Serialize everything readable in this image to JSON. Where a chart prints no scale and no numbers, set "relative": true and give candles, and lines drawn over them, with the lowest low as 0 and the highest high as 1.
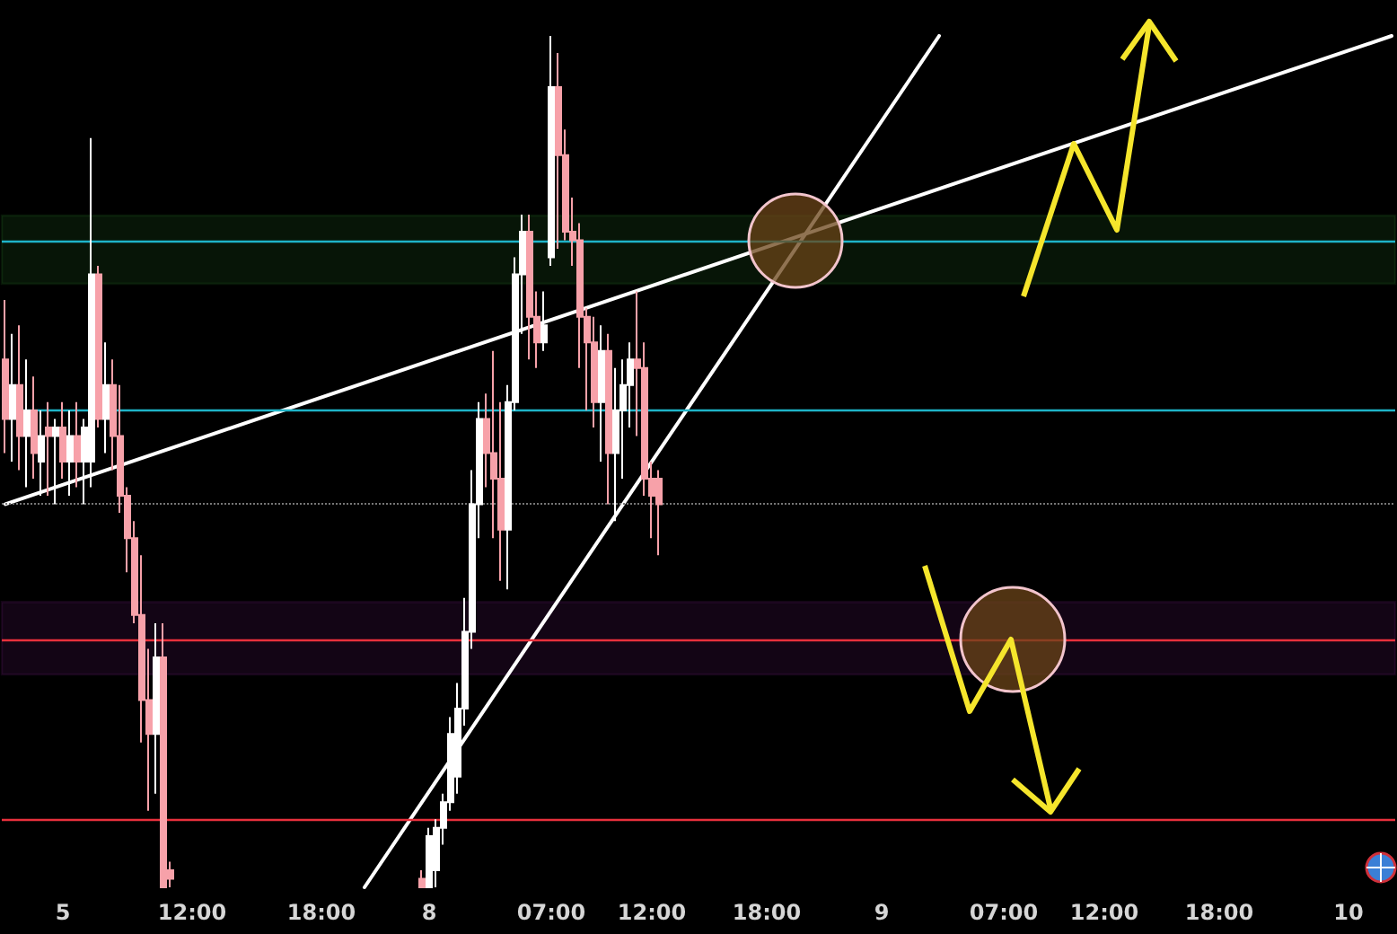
{
  "chart_data": {
    "type": "candlestick",
    "relative": true,
    "colors": [
      "#f7a1a9",
      "#ffffff",
      "#f7a1a9",
      "#ffffff",
      "#f7a1a9",
      "#ffffff",
      "#f7a1a9",
      "#ffffff",
      "#f7a1a9",
      "#ffffff",
      "#f7a1a9",
      "#ffffff",
      "#ffffff",
      "#f7a1a9",
      "#ffffff",
      "#f7a1a9",
      "#f7a1a9",
      "#f7a1a9",
      "#f7a1a9",
      "#f7a1a9",
      "#f7a1a9",
      "#ffffff",
      "#f7a1a9",
      "#f7a1a9",
      null,
      null,
      null,
      null,
      null,
      null,
      null,
      null,
      null,
      null,
      null,
      null,
      null,
      null,
      null,
      null,
      null,
      null,
      null,
      null,
      null,
      null,
      null,
      null,
      null,
      null,
      null,
      null,
      null,
      null,
      null,
      null,
      null,
      null,
      "#f7a1a9",
      "#ffffff",
      "#ffffff",
      "#ffffff",
      "#ffffff",
      "#ffffff",
      "#ffffff",
      "#ffffff",
      "#ffffff",
      "#f7a1a9",
      "#f7a1a9",
      "#f7a1a9",
      "#ffffff",
      "#ffffff",
      "#ffffff",
      "#f7a1a9",
      "#f7a1a9",
      "#ffffff",
      "#ffffff",
      "#f7a1a9",
      "#f7a1a9",
      "#f7a1a9",
      "#f7a1a9",
      "#f7a1a9",
      "#f7a1a9",
      "#ffffff",
      "#f7a1a9",
      "#ffffff",
      "#ffffff",
      "#ffffff",
      "#f7a1a9",
      "#f7a1a9",
      "#f7a1a9",
      "#f7a1a9",
      null,
      null,
      null,
      null,
      null,
      null,
      null,
      null,
      null,
      null,
      null,
      null,
      null,
      null,
      null,
      null,
      null,
      null,
      null,
      null,
      null,
      null,
      null,
      null,
      null,
      null,
      null,
      null,
      null,
      null,
      null,
      null,
      null,
      null,
      null,
      null,
      null,
      null,
      null,
      null,
      null,
      null,
      null,
      null,
      null,
      null,
      null,
      null,
      null,
      null,
      null,
      null,
      null,
      null,
      null,
      null,
      null,
      null,
      null,
      null,
      null,
      null,
      null,
      null,
      null,
      null,
      null,
      null,
      null,
      null,
      null,
      null,
      null,
      null,
      null,
      null,
      null,
      null,
      null,
      null,
      null,
      null,
      null,
      null,
      null,
      null,
      null,
      null,
      null,
      null,
      null,
      null,
      null,
      null,
      null,
      null,
      null,
      null,
      null,
      null,
      null,
      null
    ],
    "categories": [
      null,
      null,
      null,
      null,
      null,
      null,
      null,
      null,
      "5",
      null,
      null,
      null,
      null,
      null,
      null,
      null,
      null,
      null,
      null,
      null,
      null,
      null,
      null,
      null,
      null,
      null,
      "12:00",
      null,
      null,
      null,
      null,
      null,
      null,
      null,
      null,
      null,
      null,
      null,
      null,
      null,
      null,
      null,
      null,
      null,
      "18:00",
      null,
      null,
      null,
      null,
      null,
      null,
      null,
      null,
      null,
      null,
      null,
      null,
      null,
      null,
      "8",
      null,
      null,
      null,
      null,
      null,
      null,
      null,
      null,
      null,
      null,
      null,
      null,
      null,
      null,
      null,
      null,
      "07:00",
      null,
      null,
      null,
      null,
      null,
      null,
      null,
      null,
      null,
      null,
      null,
      null,
      null,
      "12:00",
      null,
      null,
      null,
      null,
      null,
      null,
      null,
      null,
      null,
      null,
      null,
      null,
      null,
      null,
      null,
      "18:00",
      null,
      null,
      null,
      null,
      null,
      null,
      null,
      null,
      null,
      null,
      null,
      null,
      null,
      null,
      null,
      "9",
      null,
      null,
      null,
      null,
      null,
      null,
      null,
      null,
      null,
      null,
      null,
      null,
      null,
      null,
      null,
      null,
      "07:00",
      null,
      null,
      null,
      null,
      null,
      null,
      null,
      null,
      null,
      null,
      null,
      null,
      null,
      "12:00",
      null,
      null,
      null,
      null,
      null,
      null,
      null,
      null,
      null,
      null,
      null,
      null,
      null,
      null,
      null,
      "18:00",
      null,
      null,
      null,
      null,
      null,
      null,
      null,
      null,
      null,
      null,
      null,
      null,
      null,
      null,
      null,
      null,
      null,
      "10",
      null,
      null,
      null,
      null,
      null,
      null
    ],
    "ohlc": [
      [
        0.62,
        0.69,
        0.51,
        0.55
      ],
      [
        0.55,
        0.65,
        0.5,
        0.59
      ],
      [
        0.59,
        0.66,
        0.49,
        0.53
      ],
      [
        0.53,
        0.62,
        0.47,
        0.56
      ],
      [
        0.56,
        0.6,
        0.48,
        0.51
      ],
      [
        0.5,
        0.56,
        0.46,
        0.53
      ],
      [
        0.54,
        0.57,
        0.46,
        0.53
      ],
      [
        0.53,
        0.55,
        0.45,
        0.54
      ],
      [
        0.54,
        0.57,
        0.48,
        0.5
      ],
      [
        0.5,
        0.56,
        0.46,
        0.53
      ],
      [
        0.53,
        0.57,
        0.47,
        0.5
      ],
      [
        0.5,
        0.55,
        0.45,
        0.54
      ],
      [
        0.5,
        0.88,
        0.47,
        0.72
      ],
      [
        0.72,
        0.73,
        0.54,
        0.55
      ],
      [
        0.55,
        0.64,
        0.51,
        0.59
      ],
      [
        0.59,
        0.62,
        0.49,
        0.53
      ],
      [
        0.53,
        0.59,
        0.44,
        0.46
      ],
      [
        0.46,
        0.47,
        0.37,
        0.41
      ],
      [
        0.41,
        0.43,
        0.31,
        0.32
      ],
      [
        0.32,
        0.39,
        0.17,
        0.22
      ],
      [
        0.22,
        0.28,
        0.09,
        0.18
      ],
      [
        0.18,
        0.31,
        0.11,
        0.27
      ],
      [
        0.27,
        0.31,
        0,
        0
      ],
      [
        0.02,
        0.03,
        0,
        0.01
      ],
      null,
      null,
      null,
      null,
      null,
      null,
      null,
      null,
      null,
      null,
      null,
      null,
      null,
      null,
      null,
      null,
      null,
      null,
      null,
      null,
      null,
      null,
      null,
      null,
      null,
      null,
      null,
      null,
      null,
      null,
      null,
      null,
      null,
      null,
      [
        0.01,
        0.02,
        0,
        0
      ],
      [
        0,
        0.07,
        0,
        0.06
      ],
      [
        0.02,
        0.08,
        0,
        0.07
      ],
      [
        0.07,
        0.11,
        0.05,
        0.1
      ],
      [
        0.1,
        0.2,
        0.09,
        0.18
      ],
      [
        0.13,
        0.24,
        0.11,
        0.21
      ],
      [
        0.21,
        0.34,
        0.19,
        0.3
      ],
      [
        0.3,
        0.49,
        0.28,
        0.45
      ],
      [
        0.45,
        0.57,
        0.41,
        0.55
      ],
      [
        0.55,
        0.58,
        0.47,
        0.51
      ],
      [
        0.51,
        0.63,
        0.41,
        0.48
      ],
      [
        0.48,
        0.57,
        0.36,
        0.42
      ],
      [
        0.42,
        0.59,
        0.35,
        0.57
      ],
      [
        0.57,
        0.74,
        0.56,
        0.72
      ],
      [
        0.72,
        0.79,
        0.65,
        0.77
      ],
      [
        0.77,
        0.79,
        0.62,
        0.67
      ],
      [
        0.67,
        0.7,
        0.61,
        0.64
      ],
      [
        0.64,
        0.7,
        0.63,
        0.66
      ],
      [
        0.74,
        1.0,
        0.73,
        0.94
      ],
      [
        0.94,
        0.98,
        0.75,
        0.86
      ],
      [
        0.86,
        0.89,
        0.76,
        0.77
      ],
      [
        0.77,
        0.81,
        0.73,
        0.76
      ],
      [
        0.76,
        0.78,
        0.61,
        0.67
      ],
      [
        0.67,
        0.68,
        0.56,
        0.64
      ],
      [
        0.64,
        0.67,
        0.54,
        0.57
      ],
      [
        0.57,
        0.66,
        0.5,
        0.63
      ],
      [
        0.63,
        0.65,
        0.45,
        0.51
      ],
      [
        0.51,
        0.61,
        0.43,
        0.56
      ],
      [
        0.56,
        0.62,
        0.48,
        0.59
      ],
      [
        0.59,
        0.64,
        0.54,
        0.62
      ],
      [
        0.62,
        0.7,
        0.53,
        0.61
      ],
      [
        0.61,
        0.64,
        0.46,
        0.48
      ],
      [
        0.48,
        0.5,
        0.41,
        0.46
      ],
      [
        0.48,
        0.49,
        0.39,
        0.45
      ],
      null,
      null,
      null,
      null,
      null,
      null,
      null,
      null,
      null,
      null,
      null,
      null,
      null,
      null,
      null,
      null,
      null,
      null,
      null,
      null,
      null,
      null,
      null,
      null,
      null,
      null,
      null,
      null,
      null,
      null,
      null,
      null,
      null,
      null,
      null,
      null,
      null,
      null,
      null,
      null,
      null,
      null,
      null,
      null,
      null,
      null,
      null,
      null,
      null,
      null,
      null,
      null,
      null,
      null,
      null,
      null,
      null,
      null,
      null,
      null,
      null,
      null,
      null,
      null,
      null,
      null,
      null,
      null,
      null,
      null,
      null,
      null,
      null,
      null,
      null,
      null,
      null,
      null,
      null,
      null,
      null,
      null,
      null,
      null,
      null,
      null,
      null,
      null,
      null,
      null,
      null,
      null,
      null,
      null,
      null,
      null,
      null,
      null,
      null,
      null,
      null,
      null
    ],
    "series": [
      {
        "type": "line",
        "color": "#ffffff",
        "values": [
          0.45,
          null,
          null,
          null,
          null,
          null,
          null,
          null,
          null,
          null,
          null,
          null,
          null,
          null,
          null,
          null,
          null,
          null,
          null,
          null,
          null,
          null,
          null,
          null,
          null,
          null,
          null,
          null,
          null,
          null,
          null,
          null,
          null,
          null,
          null,
          null,
          null,
          null,
          null,
          null,
          null,
          null,
          null,
          null,
          null,
          null,
          null,
          null,
          null,
          null,
          null,
          null,
          null,
          null,
          null,
          null,
          null,
          null,
          null,
          null,
          null,
          null,
          null,
          null,
          null,
          null,
          null,
          null,
          null,
          null,
          null,
          null,
          null,
          null,
          null,
          null,
          null,
          null,
          null,
          null,
          null,
          null,
          null,
          null,
          null,
          null,
          null,
          null,
          null,
          null,
          null,
          null,
          null,
          null,
          null,
          null,
          null,
          null,
          null,
          null,
          null,
          null,
          null,
          null,
          null,
          null,
          null,
          null,
          null,
          null,
          null,
          null,
          null,
          null,
          null,
          null,
          null,
          null,
          null,
          null,
          null,
          null,
          null,
          null,
          null,
          null,
          null,
          null,
          null,
          null,
          null,
          null,
          null,
          null,
          null,
          null,
          null,
          null,
          null,
          null,
          null,
          null,
          null,
          null,
          null,
          null,
          null,
          null,
          null,
          null,
          null,
          null,
          null,
          null,
          null,
          null,
          null,
          null,
          null,
          null,
          null,
          null,
          null,
          null,
          null,
          null,
          null,
          null,
          null,
          null,
          null,
          null,
          null,
          null,
          null,
          null,
          null,
          null,
          null,
          null,
          null,
          null,
          null,
          null,
          null,
          null,
          null,
          null,
          null,
          null,
          null,
          null,
          null,
          1.0
        ]
      },
      {
        "type": "line",
        "color": "#ffffff",
        "values": [
          null,
          null,
          null,
          null,
          null,
          null,
          null,
          null,
          null,
          null,
          null,
          null,
          null,
          null,
          null,
          null,
          null,
          null,
          null,
          null,
          null,
          null,
          null,
          null,
          null,
          null,
          null,
          null,
          null,
          null,
          null,
          null,
          null,
          null,
          null,
          null,
          null,
          null,
          null,
          null,
          null,
          null,
          null,
          null,
          null,
          null,
          null,
          null,
          null,
          null,
          0,
          null,
          null,
          null,
          null,
          null,
          null,
          null,
          null,
          null,
          null,
          null,
          null,
          null,
          null,
          null,
          null,
          null,
          null,
          null,
          null,
          null,
          null,
          null,
          null,
          null,
          null,
          null,
          null,
          null,
          null,
          null,
          null,
          null,
          null,
          null,
          null,
          null,
          null,
          null,
          null,
          null,
          null,
          null,
          null,
          null,
          null,
          null,
          null,
          null,
          null,
          null,
          null,
          null,
          null,
          null,
          null,
          null,
          null,
          null,
          null,
          null,
          null,
          null,
          null,
          null,
          null,
          null,
          null,
          null,
          null,
          null,
          null,
          null,
          null,
          null,
          null,
          null,
          null,
          null,
          1,
          null,
          null,
          null,
          null,
          null,
          null,
          null,
          null,
          null,
          null,
          null,
          null,
          null,
          null,
          null,
          null,
          null,
          null,
          null,
          null,
          null,
          null,
          null,
          null,
          null,
          null,
          null,
          null,
          null,
          null,
          null,
          null,
          null,
          null,
          null,
          null,
          null,
          null,
          null,
          null,
          null,
          null,
          null,
          null,
          null,
          null,
          null,
          null,
          null,
          null,
          null,
          null,
          null,
          null,
          null,
          null,
          null,
          null,
          null,
          null,
          null,
          null,
          null
        ]
      }
    ],
    "ref_lines": [
      {
        "axis": "y",
        "value": 0.755,
        "color": "#1eb4c8",
        "line_style": "solid"
      },
      {
        "axis": "y",
        "value": 0.56,
        "color": "#1eb4c8",
        "line_style": "solid"
      },
      {
        "axis": "y",
        "value": 0.454,
        "color": "#777777",
        "line_style": "dotted"
      },
      {
        "axis": "y",
        "value": 0.293,
        "color": "#e8303c",
        "line_style": "solid"
      },
      {
        "axis": "y",
        "value": 0.08,
        "color": "#e8303c",
        "line_style": "solid"
      }
    ],
    "bands": [
      {
        "axis": "y",
        "from": 0.709,
        "to": 0.789,
        "color": "#3caa3c"
      },
      {
        "axis": "y",
        "from": 0.25,
        "to": 0.335,
        "color": "#9c27b0"
      }
    ],
    "marker": "none"
  }
}
